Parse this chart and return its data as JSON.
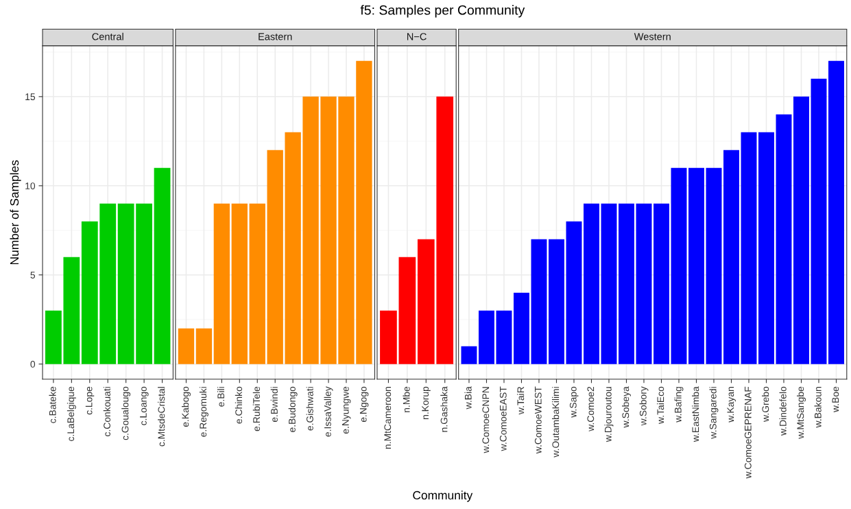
{
  "chart_data": [
    {
      "type": "bar",
      "title": "Central",
      "ylabel": "Number of Samples",
      "annotations": [
        "f5: Samples per Community",
        "Community"
      ],
      "categories": [
        "c.Bateke",
        "c.LaBelgique",
        "c.Lope",
        "c.Conkouati",
        "c.Goualougo",
        "c.Loango",
        "c.MtsdeCristal"
      ],
      "series": [
        {
          "color": "#00cc00",
          "values": [
            3,
            6,
            8,
            9,
            9,
            9,
            11
          ]
        }
      ],
      "ylim": [
        -0.85,
        17.85
      ],
      "yticks": [
        0,
        5,
        10,
        15
      ],
      "grid": true
    },
    {
      "type": "bar",
      "title": "Eastern",
      "categories": [
        "e.Kabogo",
        "e.Regomuki",
        "e.Bili",
        "e.Chinko",
        "e.RubiTele",
        "e.Bwindi",
        "e.Budongo",
        "e.Gishwati",
        "e.IssaValley",
        "e.Nyungwe",
        "e.Ngogo"
      ],
      "series": [
        {
          "color": "#ff8c00",
          "values": [
            2,
            2,
            9,
            9,
            9,
            12,
            13,
            15,
            15,
            15,
            17
          ]
        }
      ],
      "ylim": [
        -0.85,
        17.85
      ],
      "yticks": [
        0,
        5,
        10,
        15
      ],
      "grid": true,
      "tick_labels": "x"
    },
    {
      "type": "bar",
      "title": "N−C",
      "categories": [
        "n.MtCameroon",
        "n.Mbe",
        "n.Korup",
        "n.Gashaka"
      ],
      "series": [
        {
          "color": "#ff0000",
          "values": [
            3,
            6,
            7,
            15
          ]
        }
      ],
      "ylim": [
        -0.85,
        17.85
      ],
      "yticks": [
        0,
        5,
        10,
        15
      ],
      "grid": true,
      "tick_labels": "x"
    },
    {
      "type": "bar",
      "title": "Western",
      "categories": [
        "w.Bia",
        "w.ComoeCNPN",
        "w.ComoeEAST",
        "w.TaiR",
        "w.ComoeWEST",
        "w.OutambaKilimi",
        "w.Sapo",
        "w.Comoe2",
        "w.Djouroutou",
        "w.Sobeya",
        "w.Sobory",
        "w.TaiEco",
        "w.Bafing",
        "w.EastNimba",
        "w.Sangaredi",
        "w.Kayan",
        "w.ComoeGEPRENAF",
        "w.Grebo",
        "w.Dindefelo",
        "w.MtSangbe",
        "w.Bakoun",
        "w.Boe"
      ],
      "series": [
        {
          "color": "#0000ff",
          "values": [
            1,
            3,
            3,
            4,
            7,
            7,
            8,
            9,
            9,
            9,
            9,
            9,
            11,
            11,
            11,
            12,
            13,
            13,
            14,
            15,
            16,
            17
          ]
        }
      ],
      "ylim": [
        -0.85,
        17.85
      ],
      "yticks": [
        0,
        5,
        10,
        15
      ],
      "grid": true,
      "tick_labels": "x"
    }
  ]
}
